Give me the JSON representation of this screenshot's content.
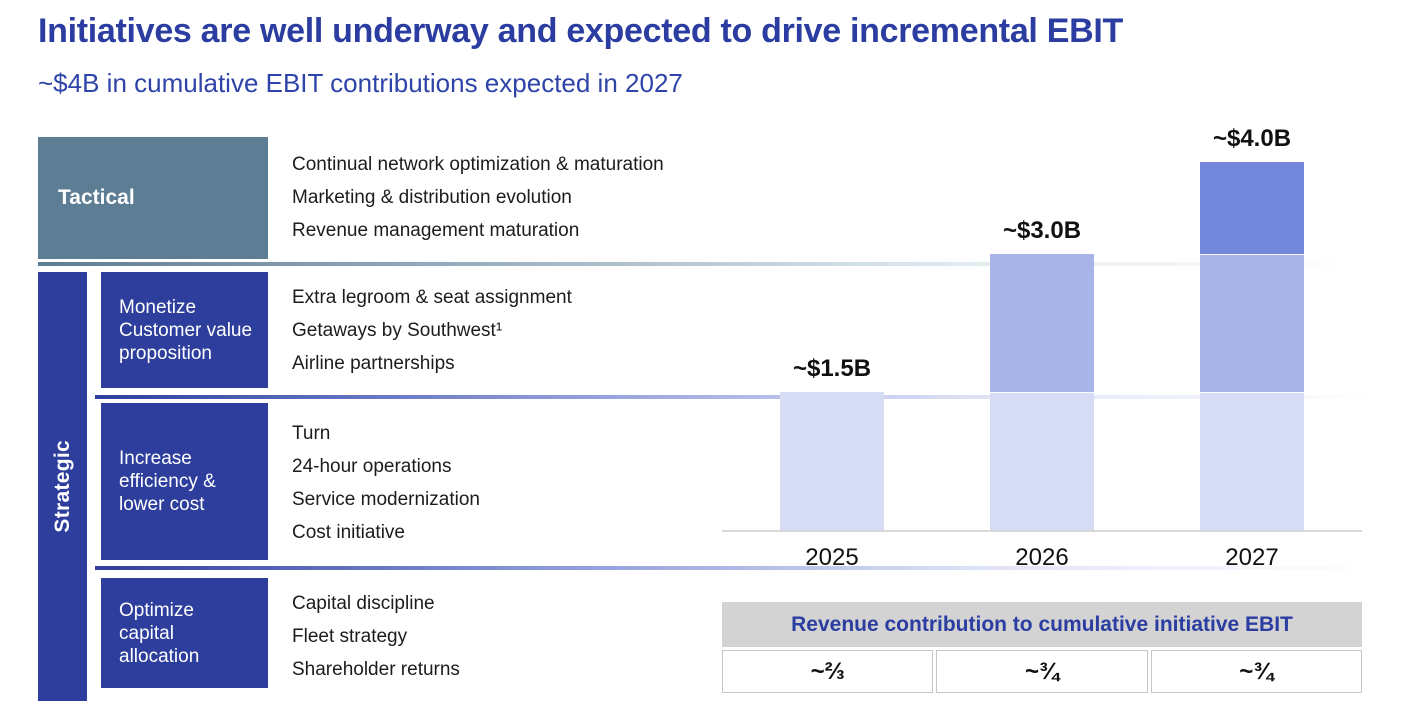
{
  "header": {
    "title": "Initiatives are well underway and expected to drive incremental EBIT",
    "subtitle": "~$4B in cumulative EBIT contributions expected in 2027"
  },
  "left_panel": {
    "tactical": {
      "label": "Tactical",
      "items": [
        "Continual network optimization & maturation",
        "Marketing & distribution evolution",
        "Revenue management maturation"
      ]
    },
    "strategic": {
      "label": "Strategic",
      "rows": [
        {
          "label_lines": [
            "Monetize",
            "Customer value",
            "proposition"
          ],
          "items": [
            "Extra legroom & seat assignment",
            "Getaways by Southwest¹",
            "Airline partnerships"
          ]
        },
        {
          "label_lines": [
            "Increase",
            "efficiency &",
            "lower cost"
          ],
          "items": [
            "Turn",
            "24-hour operations",
            "Service modernization",
            "Cost initiative"
          ]
        },
        {
          "label_lines": [
            "Optimize",
            "capital",
            "allocation"
          ],
          "items": [
            "Capital discipline",
            "Fleet strategy",
            "Shareholder returns"
          ]
        }
      ]
    }
  },
  "chart_data": {
    "type": "bar",
    "stacked": true,
    "title": "",
    "xlabel": "",
    "ylabel": "",
    "unit": "$B cumulative EBIT contribution",
    "categories": [
      "2025",
      "2026",
      "2027"
    ],
    "series": [
      {
        "name": "2025 contribution layer",
        "color": "#d6dcf3",
        "values": [
          1.5,
          1.5,
          1.5
        ]
      },
      {
        "name": "2026 incremental layer",
        "color": "#a9b4e8",
        "values": [
          0,
          1.5,
          1.5
        ]
      },
      {
        "name": "2027 incremental layer",
        "color": "#7388da",
        "values": [
          0,
          0,
          1.0
        ]
      }
    ],
    "totals": [
      1.5,
      3.0,
      4.0
    ],
    "total_labels": [
      "~$1.5B",
      "~$3.0B",
      "~$4.0B"
    ],
    "ylim": [
      0,
      4.5
    ],
    "gridlines": false,
    "legend": "none"
  },
  "bottom_table": {
    "header": "Revenue contribution to cumulative initiative EBIT",
    "cells": [
      "~⅔",
      "~¾",
      "~¾"
    ]
  },
  "colors": {
    "title_blue": "#2b3da0",
    "box_blue": "#2d3e9d",
    "tactical_slate": "#5d7d95",
    "bar_light": "#d6dcf3",
    "bar_medium": "#a9b4e8",
    "bar_dark": "#7388da",
    "table_header_bg": "#d3d3d3",
    "axis_gray": "#d9d9d9"
  }
}
